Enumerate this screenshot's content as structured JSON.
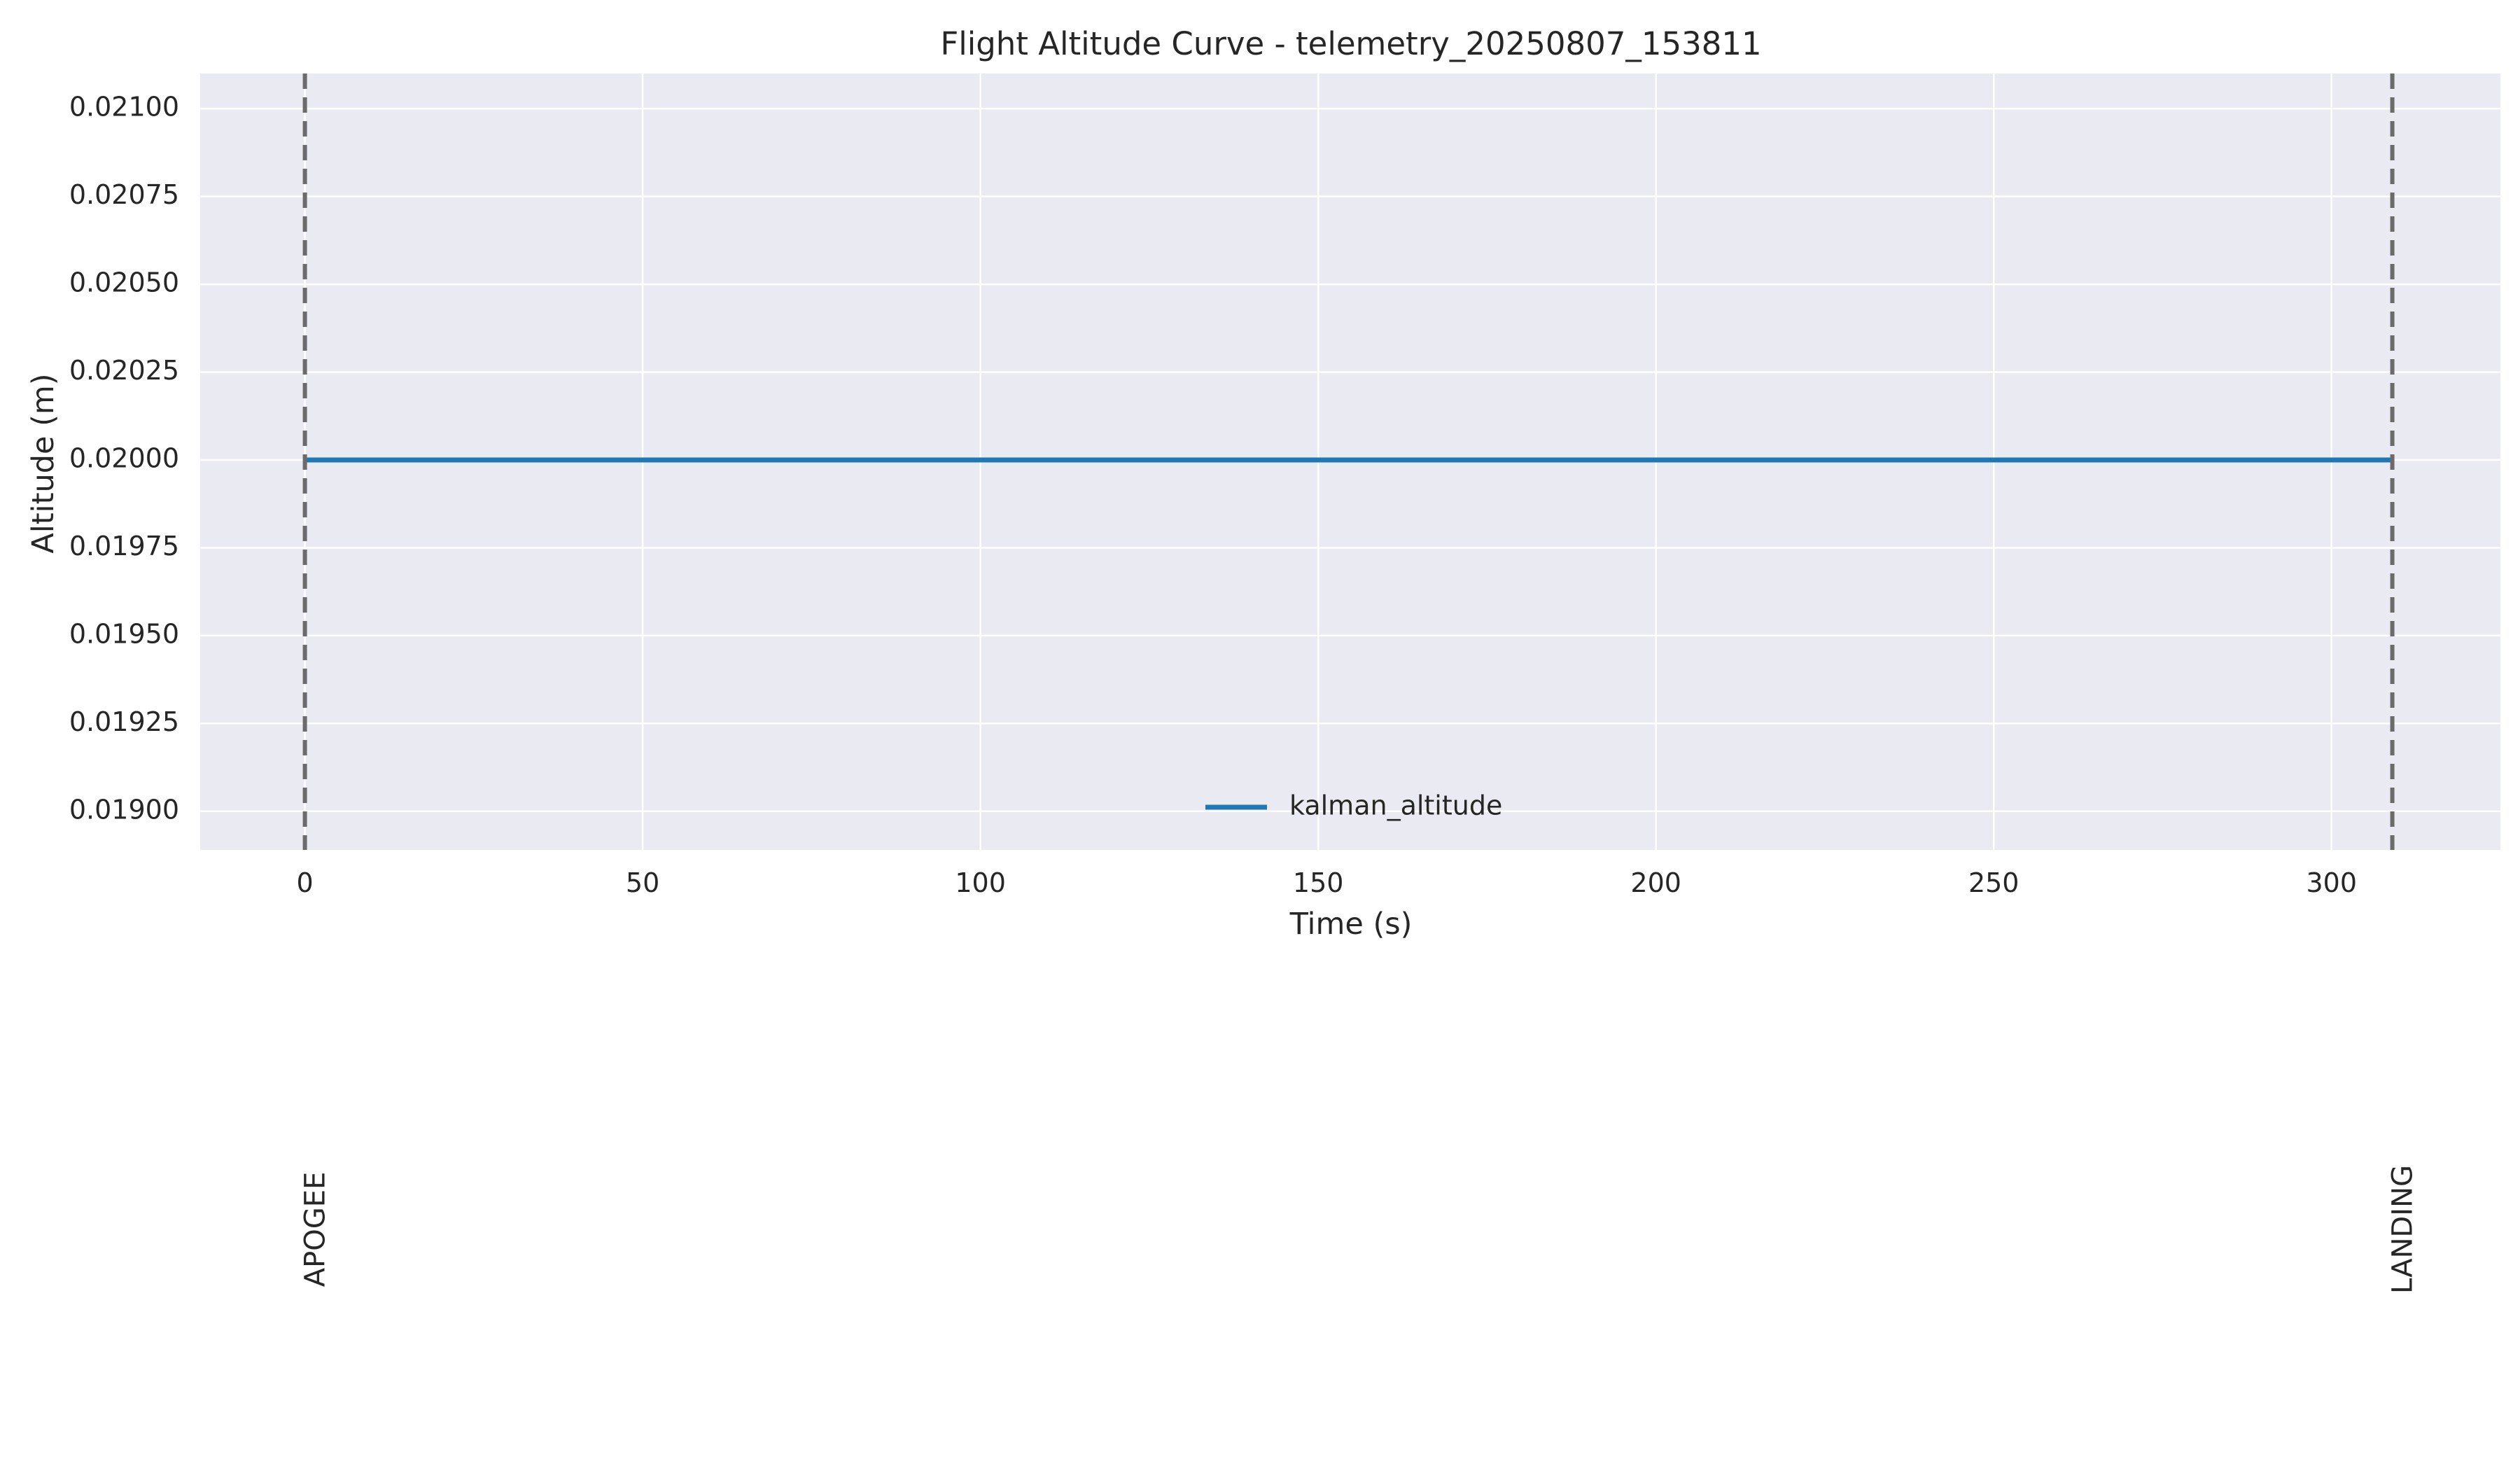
{
  "chart_data": {
    "type": "line",
    "title": "Flight Altitude Curve - telemetry_20250807_153811",
    "xlabel": "Time (s)",
    "ylabel": "Altitude (m)",
    "xlim": [
      -15.5,
      325
    ],
    "ylim": [
      0.01889,
      0.0211
    ],
    "x_ticks": [
      0,
      50,
      100,
      150,
      200,
      250,
      300
    ],
    "x_tick_labels": [
      "0",
      "50",
      "100",
      "150",
      "200",
      "250",
      "300"
    ],
    "y_ticks": [
      0.019,
      0.01925,
      0.0195,
      0.01975,
      0.02,
      0.02025,
      0.0205,
      0.02075,
      0.021
    ],
    "y_tick_labels": [
      "0.01900",
      "0.01925",
      "0.01950",
      "0.01975",
      "0.02000",
      "0.02025",
      "0.02050",
      "0.02075",
      "0.02100"
    ],
    "grid": true,
    "legend_position": "lower-center",
    "series": [
      {
        "name": "kalman_altitude",
        "color": "#1f77b4",
        "x": [
          0,
          309
        ],
        "y": [
          0.02,
          0.02
        ]
      }
    ],
    "events": [
      {
        "label": "APOGEE",
        "x": 0
      },
      {
        "label": "LANDING",
        "x": 309
      }
    ],
    "colors": {
      "plot_background": "#eaeaf2",
      "grid": "#ffffff",
      "event_line": "#6b6b6b",
      "text": "#262626"
    }
  }
}
